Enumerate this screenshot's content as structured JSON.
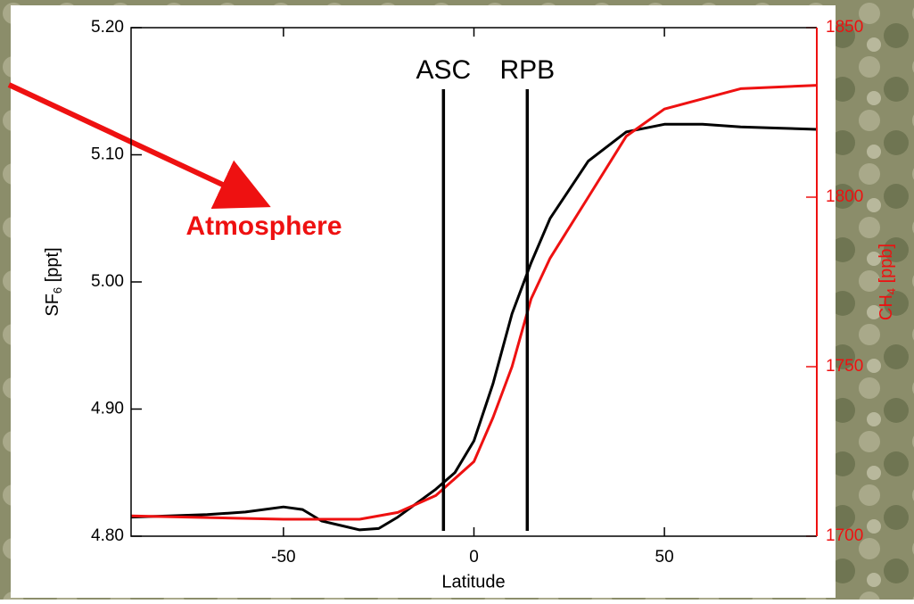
{
  "chart_data": {
    "type": "line",
    "x_label": "Latitude",
    "y_label": {
      "main": "SF",
      "sub": "6",
      "rest": " [ppt]"
    },
    "y2_label": {
      "main": "CH",
      "sub": "4",
      "rest": " [ppb]"
    },
    "xlim": [
      -90,
      90
    ],
    "xticks": [
      -50,
      0,
      50
    ],
    "ylim": [
      4.8,
      5.2
    ],
    "yticks": [
      {
        "value": 4.8,
        "label": "4.80"
      },
      {
        "value": 4.9,
        "label": "4.90"
      },
      {
        "value": 5.0,
        "label": "5.00"
      },
      {
        "value": 5.1,
        "label": "5.10"
      },
      {
        "value": 5.2,
        "label": "5.20"
      }
    ],
    "y2lim": [
      1700,
      1850
    ],
    "y2ticks": [
      1700,
      1750,
      1800,
      1850
    ],
    "y2color": "#ee1111",
    "series": [
      {
        "color": "#000000",
        "x": [
          -90,
          -80,
          -70,
          -60,
          -50,
          -45,
          -40,
          -30,
          -25,
          -20,
          -10,
          -5,
          0,
          5,
          10,
          15,
          20,
          30,
          40,
          50,
          60,
          70,
          80,
          90
        ],
        "values": [
          4.815,
          4.816,
          4.817,
          4.819,
          4.823,
          4.821,
          4.812,
          4.805,
          4.806,
          4.815,
          4.837,
          4.85,
          4.875,
          4.92,
          4.975,
          5.015,
          5.05,
          5.095,
          5.118,
          5.124,
          5.124,
          5.122,
          5.121,
          5.12
        ]
      },
      {
        "color": "#ee1111",
        "axis": "y2",
        "x": [
          -90,
          -50,
          -30,
          -20,
          -10,
          0,
          5,
          10,
          15,
          20,
          30,
          40,
          50,
          60,
          70,
          80,
          90
        ],
        "values": [
          1706,
          1705,
          1705,
          1707,
          1712,
          1722,
          1735,
          1750,
          1770,
          1782,
          1800,
          1818,
          1826,
          1829,
          1832,
          1832.5,
          1833
        ]
      }
    ],
    "vlines": [
      {
        "label": "ASC",
        "x": -8
      },
      {
        "label": "RPB",
        "x": 14
      }
    ],
    "annotation": "Atmosphere"
  }
}
